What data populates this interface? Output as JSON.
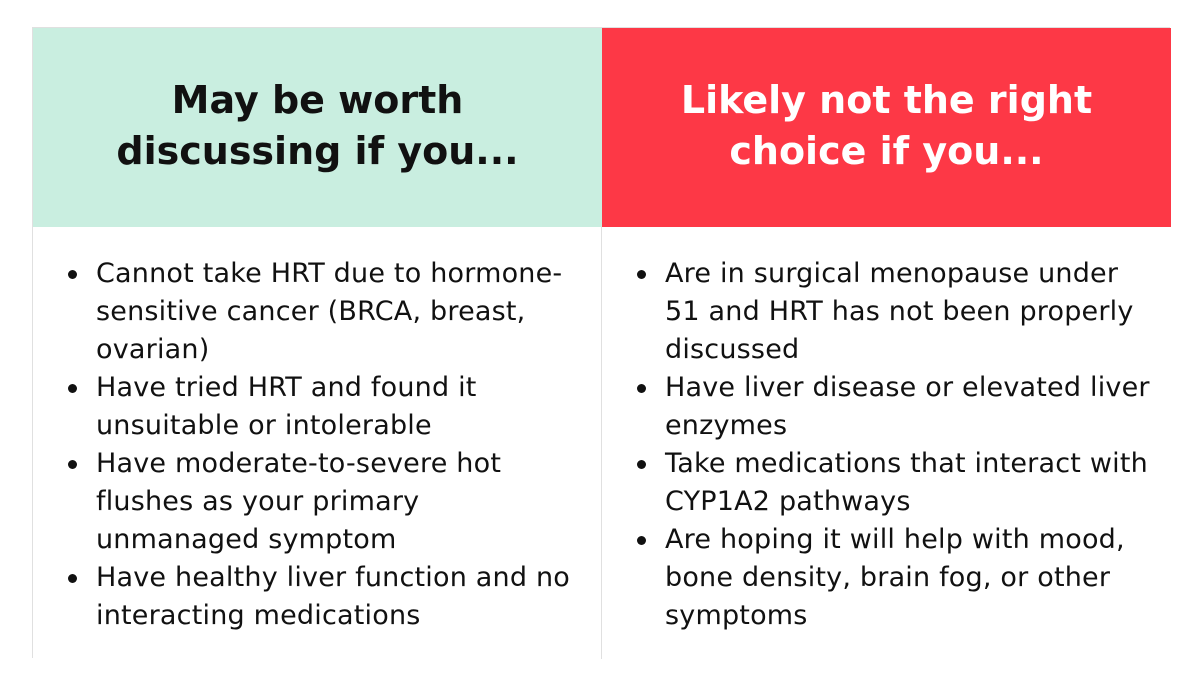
{
  "columns": [
    {
      "heading": "May be worth discussing if you...",
      "items": [
        "Cannot take HRT due to hormone-sensitive cancer (BRCA, breast, ovarian)",
        "Have tried HRT and found it unsuitable or intolerable",
        "Have moderate-to-severe hot flushes as your primary unmanaged symptom",
        "Have healthy liver function and no interacting medications"
      ]
    },
    {
      "heading": "Likely not the right choice if you...",
      "items": [
        "Are in surgical menopause under 51 and HRT has not been properly discussed",
        "Have liver disease or elevated liver enzymes",
        "Take medications that interact with CYP1A2 pathways",
        "Are hoping it will help with mood, bone density, brain fog, or other symptoms"
      ]
    }
  ],
  "colors": {
    "left_header_bg": "#c9eee0",
    "right_header_bg": "#fd3846",
    "right_header_text": "#ffffff",
    "text": "#111111"
  }
}
